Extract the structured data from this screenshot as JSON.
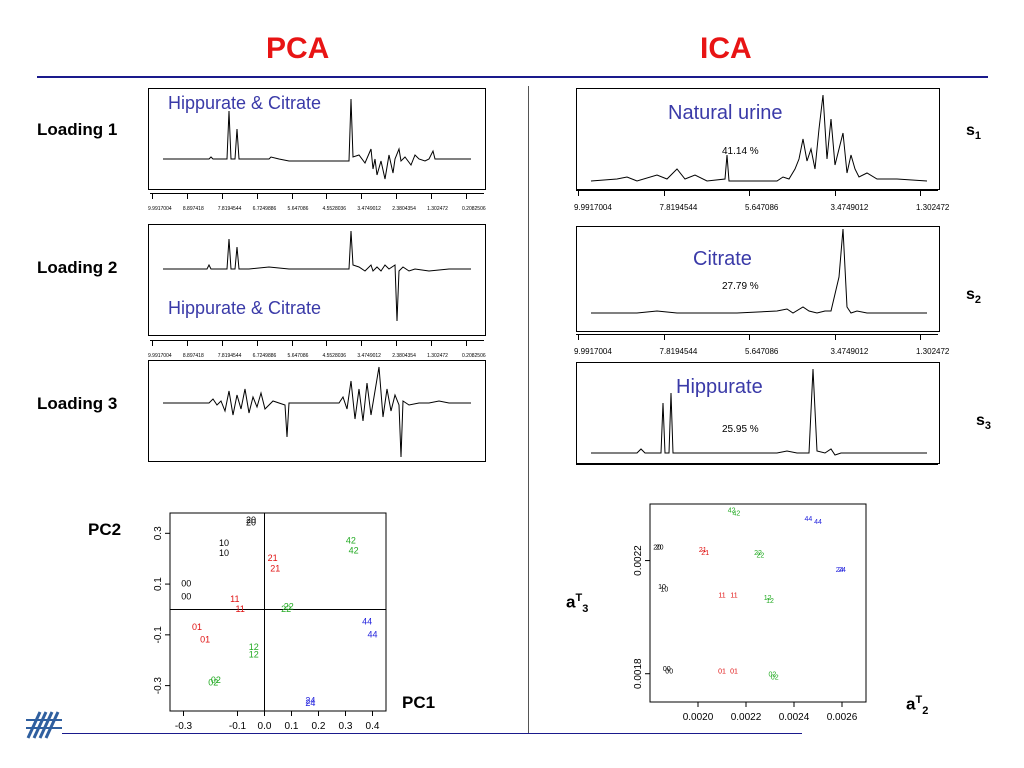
{
  "titles": {
    "pca": "PCA",
    "ica": "ICA"
  },
  "pca_rows": [
    {
      "label": "Loading 1",
      "annotation": "Hippurate  & Citrate",
      "ticks": [
        "9.9917004",
        "8.897418",
        "7.8194544",
        "6.7249886",
        "5.647086",
        "4.5528036",
        "3.4749012",
        "2.3804354",
        "1.302472",
        "0.2082506"
      ]
    },
    {
      "label": "Loading 2",
      "annotation": "Hippurate  & Citrate",
      "ticks": [
        "9.9917004",
        "8.897418",
        "7.8194544",
        "6.7249886",
        "5.647086",
        "4.5528036",
        "3.4749012",
        "2.3804354",
        "1.302472",
        "0.2082506"
      ]
    },
    {
      "label": "Loading 3",
      "annotation": "",
      "ticks": []
    }
  ],
  "ica_rows": [
    {
      "annotation": "Natural urine",
      "percent": "41.14 %",
      "signal": "s",
      "signal_sub": "1",
      "ticks": [
        "9.9917004",
        "7.8194544",
        "5.647086",
        "3.4749012",
        "1.302472"
      ]
    },
    {
      "annotation": "Citrate",
      "percent": "27.79 %",
      "signal": "s",
      "signal_sub": "2",
      "ticks": [
        "9.9917004",
        "7.8194544",
        "5.647086",
        "3.4749012",
        "1.302472"
      ]
    },
    {
      "annotation": "Hippurate",
      "percent": "25.95 %",
      "signal": "s",
      "signal_sub": "3",
      "ticks": []
    }
  ],
  "scatter_pca": {
    "xlabel": "PC1",
    "ylabel": "PC2"
  },
  "scatter_ica": {
    "xlabel_main": "a",
    "xlabel_sup": "T",
    "xlabel_sub": "2",
    "ylabel_main": "a",
    "ylabel_sup": "T",
    "ylabel_sub": "3"
  },
  "colors": {
    "title": "#e81414",
    "rule": "#1a1a8c",
    "annotation": "#3a3aa8",
    "group0": "#000000",
    "group1": "#e01010",
    "group2": "#22aa22",
    "group4": "#2222dd"
  },
  "chart_data": [
    {
      "type": "scatter",
      "xlabel": "PC1",
      "ylabel": "PC2",
      "xlim": [
        -0.35,
        0.45
      ],
      "ylim": [
        -0.4,
        0.38
      ],
      "xticks": [
        "-0.3",
        "-0.1",
        "0.0",
        "0.1",
        "0.2",
        "0.3",
        "0.4"
      ],
      "yticks": [
        "0.3",
        "0.1",
        "-0.1",
        "-0.3"
      ],
      "points": [
        {
          "label": "20",
          "x": -0.05,
          "y": 0.34,
          "group": 0
        },
        {
          "label": "20",
          "x": -0.05,
          "y": 0.33,
          "group": 0
        },
        {
          "label": "10",
          "x": -0.15,
          "y": 0.25,
          "group": 0
        },
        {
          "label": "10",
          "x": -0.15,
          "y": 0.21,
          "group": 0
        },
        {
          "label": "00",
          "x": -0.29,
          "y": 0.09,
          "group": 0
        },
        {
          "label": "00",
          "x": -0.29,
          "y": 0.04,
          "group": 0
        },
        {
          "label": "21",
          "x": 0.03,
          "y": 0.19,
          "group": 1
        },
        {
          "label": "21",
          "x": 0.04,
          "y": 0.15,
          "group": 1
        },
        {
          "label": "11",
          "x": -0.11,
          "y": 0.03,
          "group": 1
        },
        {
          "label": "11",
          "x": -0.09,
          "y": -0.01,
          "group": 1
        },
        {
          "label": "01",
          "x": -0.25,
          "y": -0.08,
          "group": 1
        },
        {
          "label": "01",
          "x": -0.22,
          "y": -0.13,
          "group": 1
        },
        {
          "label": "42",
          "x": 0.32,
          "y": 0.26,
          "group": 2
        },
        {
          "label": "42",
          "x": 0.33,
          "y": 0.22,
          "group": 2
        },
        {
          "label": "22",
          "x": 0.09,
          "y": 0.0,
          "group": 2
        },
        {
          "label": "22",
          "x": 0.08,
          "y": -0.01,
          "group": 2
        },
        {
          "label": "12",
          "x": -0.04,
          "y": -0.16,
          "group": 2
        },
        {
          "label": "12",
          "x": -0.04,
          "y": -0.19,
          "group": 2
        },
        {
          "label": "02",
          "x": -0.18,
          "y": -0.29,
          "group": 2
        },
        {
          "label": "02",
          "x": -0.19,
          "y": -0.3,
          "group": 2
        },
        {
          "label": "44",
          "x": 0.38,
          "y": -0.06,
          "group": 4
        },
        {
          "label": "44",
          "x": 0.4,
          "y": -0.11,
          "group": 4
        },
        {
          "label": "24",
          "x": 0.17,
          "y": -0.37,
          "group": 4
        },
        {
          "label": "24",
          "x": 0.17,
          "y": -0.38,
          "group": 4
        }
      ]
    },
    {
      "type": "scatter",
      "xlabel": "aT2",
      "ylabel": "aT3",
      "xlim": [
        0.0018,
        0.0027
      ],
      "ylim": [
        0.0017,
        0.0024
      ],
      "xticks": [
        "0.0020",
        "0.0022",
        "0.0024",
        "0.0026"
      ],
      "yticks": [
        "0.0022",
        "0.0018"
      ],
      "points": [
        {
          "label": "20",
          "x": 0.00183,
          "y": 0.00224,
          "group": 0
        },
        {
          "label": "20",
          "x": 0.00184,
          "y": 0.00224,
          "group": 0
        },
        {
          "label": "10",
          "x": 0.00185,
          "y": 0.0021,
          "group": 0
        },
        {
          "label": "10",
          "x": 0.00186,
          "y": 0.00209,
          "group": 0
        },
        {
          "label": "00",
          "x": 0.00187,
          "y": 0.00181,
          "group": 0
        },
        {
          "label": "00",
          "x": 0.00188,
          "y": 0.0018,
          "group": 0
        },
        {
          "label": "21",
          "x": 0.00202,
          "y": 0.00223,
          "group": 1
        },
        {
          "label": "21",
          "x": 0.00203,
          "y": 0.00222,
          "group": 1
        },
        {
          "label": "11",
          "x": 0.0021,
          "y": 0.00207,
          "group": 1
        },
        {
          "label": "11",
          "x": 0.00215,
          "y": 0.00207,
          "group": 1
        },
        {
          "label": "01",
          "x": 0.0021,
          "y": 0.0018,
          "group": 1
        },
        {
          "label": "01",
          "x": 0.00215,
          "y": 0.0018,
          "group": 1
        },
        {
          "label": "42",
          "x": 0.00214,
          "y": 0.00237,
          "group": 2
        },
        {
          "label": "42",
          "x": 0.00216,
          "y": 0.00236,
          "group": 2
        },
        {
          "label": "22",
          "x": 0.00225,
          "y": 0.00222,
          "group": 2
        },
        {
          "label": "22",
          "x": 0.00226,
          "y": 0.00221,
          "group": 2
        },
        {
          "label": "12",
          "x": 0.00229,
          "y": 0.00206,
          "group": 2
        },
        {
          "label": "12",
          "x": 0.0023,
          "y": 0.00205,
          "group": 2
        },
        {
          "label": "02",
          "x": 0.00231,
          "y": 0.00179,
          "group": 2
        },
        {
          "label": "02",
          "x": 0.00232,
          "y": 0.00178,
          "group": 2
        },
        {
          "label": "44",
          "x": 0.00246,
          "y": 0.00234,
          "group": 4
        },
        {
          "label": "44",
          "x": 0.0025,
          "y": 0.00233,
          "group": 4
        },
        {
          "label": "24",
          "x": 0.00259,
          "y": 0.00216,
          "group": 4
        },
        {
          "label": "24",
          "x": 0.0026,
          "y": 0.00216,
          "group": 4
        }
      ]
    }
  ]
}
